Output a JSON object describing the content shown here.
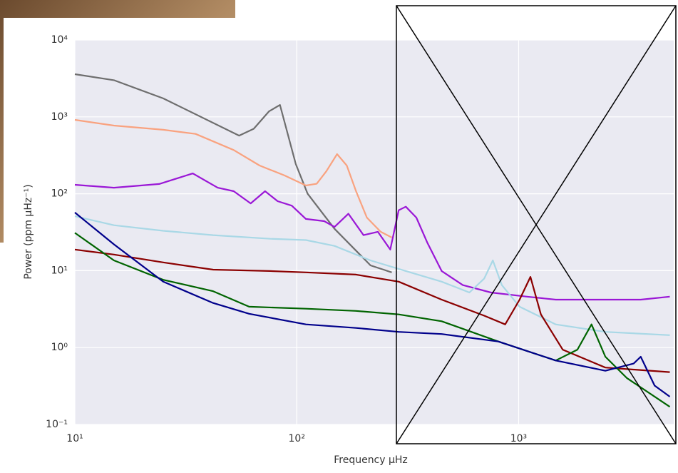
{
  "chart_data": {
    "type": "line",
    "x_label": "Frequency μHz",
    "y_label": "Power (ppm μHz⁻¹)",
    "xlog": true,
    "ylog": true,
    "grid": true,
    "xlim": [
      10,
      5000
    ],
    "ylim": [
      0.1,
      10000
    ],
    "xticks": [
      {
        "value": 10,
        "label": "10¹"
      },
      {
        "value": 100,
        "label": "10²"
      },
      {
        "value": 1000,
        "label": "10³"
      }
    ],
    "yticks": [
      {
        "value": 0.1,
        "label": "10⁻¹"
      },
      {
        "value": 1,
        "label": "10⁰"
      },
      {
        "value": 10,
        "label": "10¹"
      },
      {
        "value": 100,
        "label": "10²"
      },
      {
        "value": 1000,
        "label": "10³"
      },
      {
        "value": 10000,
        "label": "10⁴"
      }
    ],
    "series": [
      {
        "color": "#6e6e6e",
        "x": [
          10,
          15,
          25,
          55,
          64,
          75,
          84,
          99,
          112,
          148,
          215,
          268
        ],
        "values": [
          3590,
          3000,
          1740,
          570,
          700,
          1180,
          1430,
          243,
          100,
          35,
          11.7,
          9.5
        ]
      },
      {
        "color": "#f9a27f",
        "x": [
          10,
          15,
          25,
          35,
          52,
          68,
          88,
          110,
          123,
          136,
          152,
          168,
          185,
          207,
          239,
          268
        ],
        "values": [
          915,
          770,
          680,
          600,
          370,
          233,
          173,
          128,
          135,
          197,
          328,
          233,
          108,
          49,
          32,
          27
        ]
      },
      {
        "color": "#9a17d6",
        "x": [
          10,
          15,
          24,
          34,
          44,
          52,
          62,
          72,
          82,
          95,
          110,
          133,
          148,
          171,
          200,
          232,
          264,
          288,
          310,
          346,
          388,
          450,
          560,
          750,
          1090,
          1470,
          2460,
          3550,
          4800
        ],
        "values": [
          131,
          120,
          134,
          184,
          120,
          108,
          75,
          108,
          80,
          70,
          47,
          44,
          37,
          55,
          29,
          32,
          18.8,
          61,
          68,
          49,
          23,
          9.9,
          6.5,
          5.2,
          4.6,
          4.2,
          4.2,
          4.2,
          4.6
        ]
      },
      {
        "color": "#a9d8e6",
        "x": [
          10,
          15,
          25,
          42,
          76,
          110,
          148,
          215,
          310,
          450,
          600,
          700,
          765,
          840,
          1010,
          1470,
          2460,
          4800
        ],
        "values": [
          51,
          39,
          33,
          29,
          26,
          25,
          21,
          13.6,
          9.9,
          7.2,
          5.2,
          7.9,
          13.6,
          6.5,
          3.4,
          2.0,
          1.6,
          1.45
        ]
      },
      {
        "color": "#8b0000",
        "x": [
          10,
          15,
          25,
          42,
          76,
          110,
          185,
          288,
          450,
          700,
          870,
          1010,
          1130,
          1260,
          1580,
          2460,
          4800
        ],
        "values": [
          18.8,
          16.2,
          12.8,
          10.3,
          9.9,
          9.5,
          8.9,
          7.2,
          4.2,
          2.6,
          2.0,
          4.2,
          8.3,
          2.7,
          0.94,
          0.55,
          0.48
        ]
      },
      {
        "color": "#006400",
        "x": [
          10,
          15,
          25,
          42,
          61,
          110,
          185,
          288,
          450,
          810,
          1470,
          1840,
          2130,
          2460,
          3080,
          4800
        ],
        "values": [
          31,
          13.6,
          7.6,
          5.4,
          3.4,
          3.2,
          3.0,
          2.7,
          2.2,
          1.2,
          0.68,
          0.94,
          2.0,
          0.76,
          0.4,
          0.17
        ]
      },
      {
        "color": "#00008b",
        "x": [
          10,
          15,
          25,
          42,
          61,
          110,
          185,
          288,
          450,
          810,
          1470,
          2460,
          3300,
          3550,
          4100,
          4800
        ],
        "values": [
          57,
          22,
          7.2,
          3.8,
          2.75,
          2.0,
          1.8,
          1.6,
          1.5,
          1.2,
          0.68,
          0.5,
          0.62,
          0.76,
          0.32,
          0.23
        ]
      }
    ]
  }
}
